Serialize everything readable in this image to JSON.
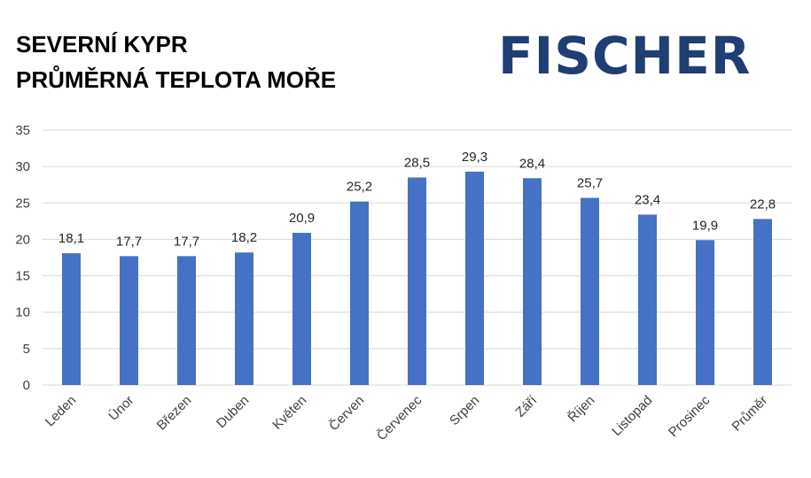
{
  "title_lines": [
    "SEVERNÍ KYPR",
    "PRŮMĚRNÁ TEPLOTA MOŘE"
  ],
  "logo_text": "FISCHER",
  "colors": {
    "bar": "#4472c4",
    "grid": "#d9d9d9",
    "logo": "#1f3e73"
  },
  "chart_data": {
    "type": "bar",
    "title": "SEVERNÍ KYPR PRŮMĚRNÁ TEPLOTA MOŘE",
    "xlabel": "",
    "ylabel": "",
    "categories": [
      "Leden",
      "Únor",
      "Březen",
      "Duben",
      "Květen",
      "Červen",
      "Červenec",
      "Srpen",
      "Září",
      "Říjen",
      "Listopad",
      "Prosinec",
      "Průměr"
    ],
    "values": [
      18.1,
      17.7,
      17.7,
      18.2,
      20.9,
      25.2,
      28.5,
      29.3,
      28.4,
      25.7,
      23.4,
      19.9,
      22.8
    ],
    "value_labels": [
      "18,1",
      "17,7",
      "17,7",
      "18,2",
      "20,9",
      "25,2",
      "28,5",
      "29,3",
      "28,4",
      "25,7",
      "23,4",
      "19,9",
      "22,8"
    ],
    "yticks": [
      "0",
      "5",
      "10",
      "15",
      "20",
      "25",
      "30",
      "35"
    ],
    "ylim": [
      0,
      35
    ],
    "grid": true,
    "legend": false
  }
}
